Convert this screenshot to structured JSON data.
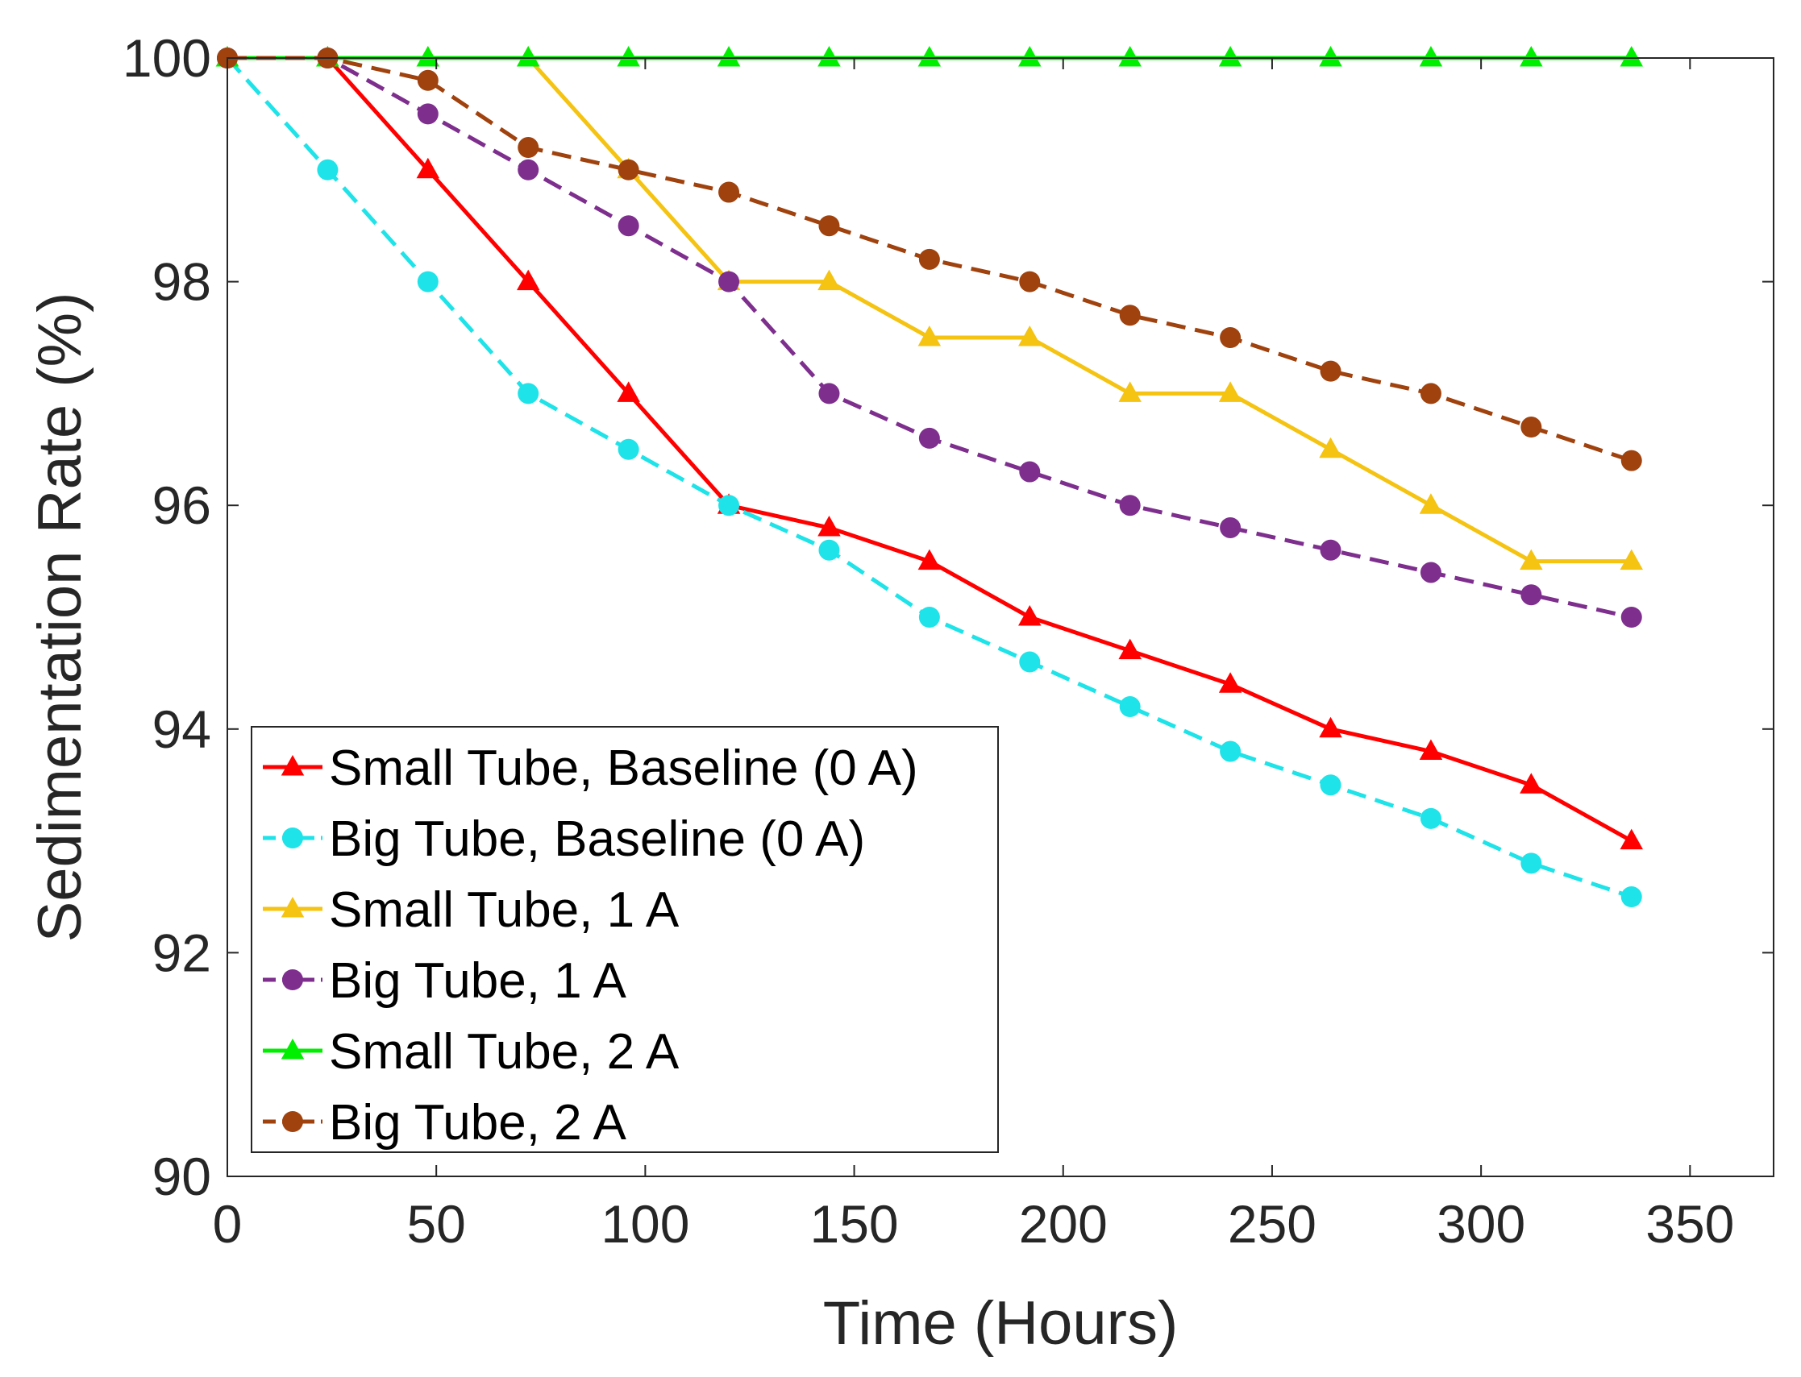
{
  "chart_data": {
    "type": "line",
    "title": "",
    "xlabel": "Time (Hours)",
    "ylabel": "Sedimentation Rate (%)",
    "xlim": [
      0,
      370
    ],
    "ylim": [
      90,
      100
    ],
    "xticks": [
      0,
      50,
      100,
      150,
      200,
      250,
      300,
      350
    ],
    "yticks": [
      90,
      92,
      94,
      96,
      98,
      100
    ],
    "grid": false,
    "legend_position": "bottom-left",
    "x": [
      0,
      24,
      48,
      72,
      96,
      120,
      144,
      168,
      192,
      216,
      240,
      264,
      288,
      312,
      336
    ],
    "series": [
      {
        "name": "Small Tube, Baseline (0 A)",
        "color": "#ff0000",
        "line_style": "solid",
        "marker": "triangle",
        "values": [
          100,
          100,
          99.0,
          98.0,
          97.0,
          96.0,
          95.8,
          95.5,
          95.0,
          94.7,
          94.4,
          94.0,
          93.8,
          93.5,
          93.0
        ]
      },
      {
        "name": "Big Tube, Baseline (0 A)",
        "color": "#1ee3e8",
        "line_style": "dashed",
        "marker": "circle",
        "values": [
          100,
          99.0,
          98.0,
          97.0,
          96.5,
          96.0,
          95.6,
          95.0,
          94.6,
          94.2,
          93.8,
          93.5,
          93.2,
          92.8,
          92.5
        ]
      },
      {
        "name": "Small Tube, 1 A",
        "color": "#f5c311",
        "line_style": "solid",
        "marker": "triangle",
        "values": [
          100,
          100,
          100,
          100,
          99.0,
          98.0,
          98.0,
          97.5,
          97.5,
          97.0,
          97.0,
          96.5,
          96.0,
          95.5,
          95.5
        ]
      },
      {
        "name": "Big Tube, 1 A",
        "color": "#7e2f8e",
        "line_style": "dashed",
        "marker": "circle",
        "values": [
          100,
          100,
          99.5,
          99.0,
          98.5,
          98.0,
          97.0,
          96.6,
          96.3,
          96.0,
          95.8,
          95.6,
          95.4,
          95.2,
          95.0
        ]
      },
      {
        "name": "Small Tube, 2 A",
        "color": "#00ee00",
        "line_style": "solid",
        "marker": "triangle",
        "values": [
          100,
          100,
          100,
          100,
          100,
          100,
          100,
          100,
          100,
          100,
          100,
          100,
          100,
          100,
          100
        ]
      },
      {
        "name": "Big Tube, 2 A",
        "color": "#a0420e",
        "line_style": "dashed",
        "marker": "circle",
        "values": [
          100,
          100,
          99.8,
          99.2,
          99.0,
          98.8,
          98.5,
          98.2,
          98.0,
          97.7,
          97.5,
          97.2,
          97.0,
          96.7,
          96.4
        ]
      }
    ]
  }
}
